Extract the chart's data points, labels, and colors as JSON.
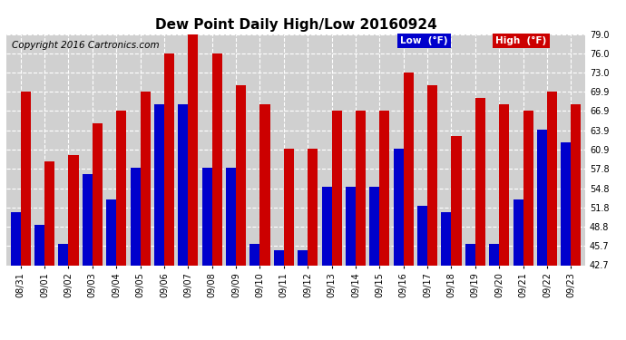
{
  "title": "Dew Point Daily High/Low 20160924",
  "copyright": "Copyright 2016 Cartronics.com",
  "legend_low": "Low  (°F)",
  "legend_high": "High  (°F)",
  "categories": [
    "08/31",
    "09/01",
    "09/02",
    "09/03",
    "09/04",
    "09/05",
    "09/06",
    "09/07",
    "09/08",
    "09/09",
    "09/10",
    "09/11",
    "09/12",
    "09/13",
    "09/14",
    "09/15",
    "09/16",
    "09/17",
    "09/18",
    "09/19",
    "09/20",
    "09/21",
    "09/22",
    "09/23"
  ],
  "high_values": [
    70.0,
    59.0,
    60.0,
    65.0,
    67.0,
    70.0,
    76.0,
    79.0,
    76.0,
    71.0,
    68.0,
    61.0,
    61.0,
    67.0,
    67.0,
    67.0,
    73.0,
    71.0,
    63.0,
    69.0,
    68.0,
    67.0,
    70.0,
    68.0
  ],
  "low_values": [
    51.0,
    49.0,
    46.0,
    57.0,
    53.0,
    58.0,
    68.0,
    68.0,
    58.0,
    58.0,
    46.0,
    45.0,
    45.0,
    55.0,
    55.0,
    55.0,
    61.0,
    52.0,
    51.0,
    46.0,
    46.0,
    53.0,
    64.0,
    62.0
  ],
  "ylim_min": 42.7,
  "ylim_max": 79.0,
  "yticks": [
    42.7,
    45.7,
    48.8,
    51.8,
    54.8,
    57.8,
    60.9,
    63.9,
    66.9,
    69.9,
    73.0,
    76.0,
    79.0
  ],
  "bar_width": 0.42,
  "low_color": "#0000cc",
  "high_color": "#cc0000",
  "background_color": "#ffffff",
  "plot_bg_color": "#d0d0d0",
  "grid_color": "#ffffff",
  "title_fontsize": 11,
  "copyright_fontsize": 7.5,
  "tick_fontsize": 7,
  "legend_fontsize": 7.5
}
